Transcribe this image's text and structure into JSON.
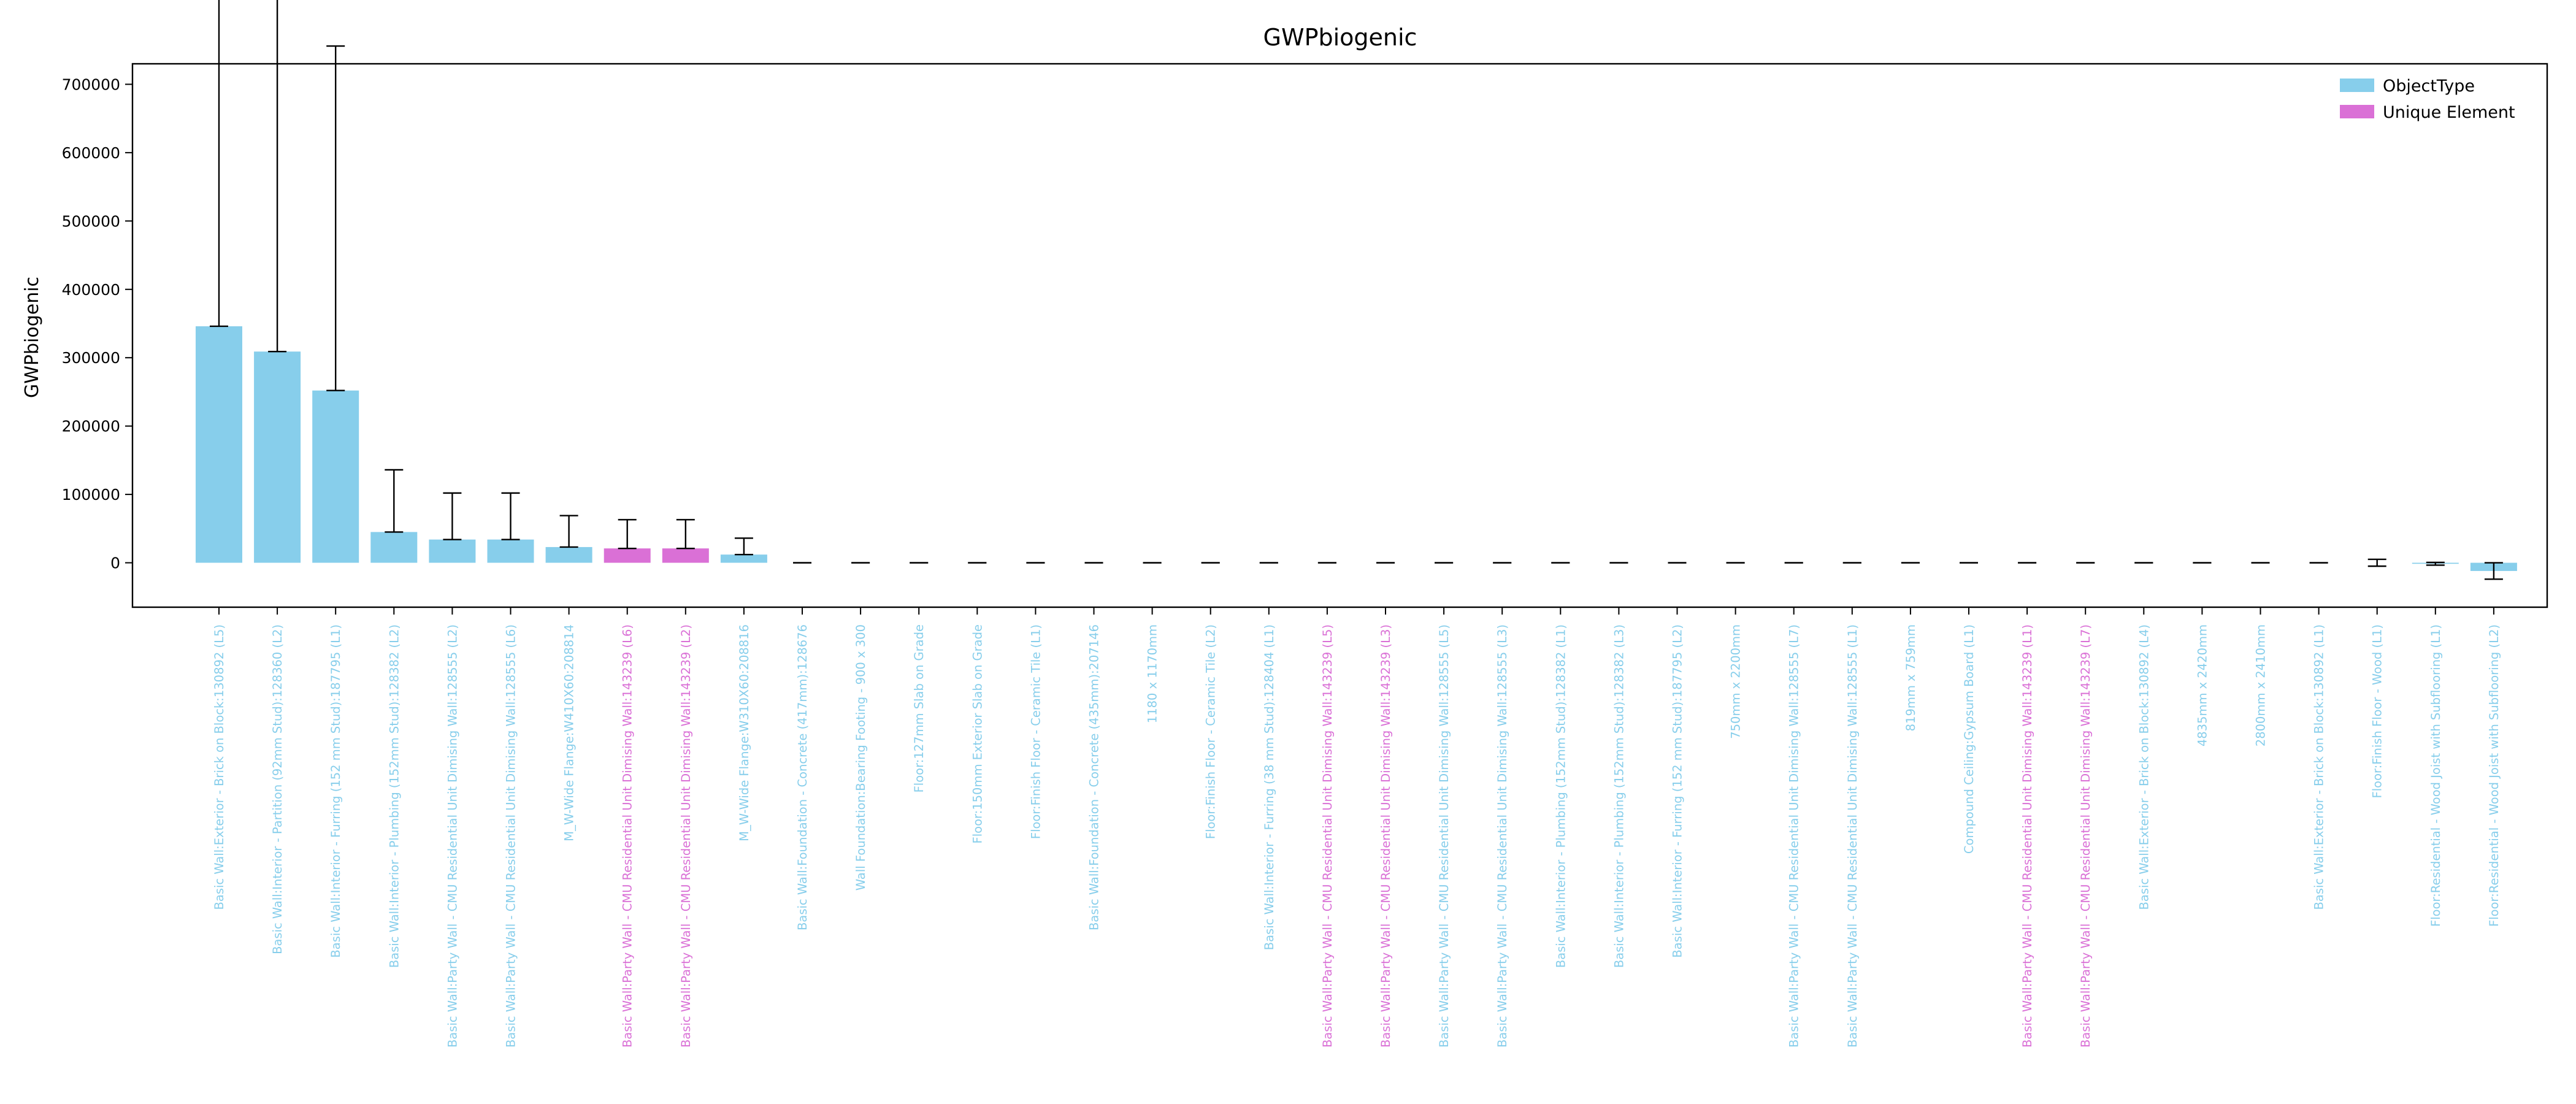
{
  "chart_data": {
    "type": "bar",
    "title": "GWPbiogenic",
    "xlabel": "",
    "ylabel": "GWPbiogenic",
    "ylim": [
      -65000,
      730000
    ],
    "yticks": [
      0,
      100000,
      200000,
      300000,
      400000,
      500000,
      600000,
      700000
    ],
    "grid": false,
    "legend": {
      "placement": "top-right",
      "entries": [
        {
          "label": "ObjectType",
          "color": "#87ceeb"
        },
        {
          "label": "Unique Element",
          "color": "#da70d6"
        }
      ]
    },
    "colors": {
      "ObjectType": "#87ceeb",
      "Unique Element": "#da70d6"
    },
    "categories": [
      {
        "label": "Basic Wall:Exterior - Brick on Block:130892 (L5)",
        "value": 346000,
        "err_low": 0,
        "err_high": 693000,
        "kind": "ObjectType"
      },
      {
        "label": "Basic Wall:Interior - Partition (92mm Stud):128360 (L2)",
        "value": 309000,
        "err_low": 0,
        "err_high": 619000,
        "kind": "ObjectType"
      },
      {
        "label": "Basic Wall:Interior - Furring (152 mm Stud):187795 (L1)",
        "value": 252000,
        "err_low": 0,
        "err_high": 504000,
        "kind": "ObjectType"
      },
      {
        "label": "Basic Wall:Interior - Plumbing (152mm Stud):128382 (L2)",
        "value": 45000,
        "err_low": 0,
        "err_high": 91000,
        "kind": "ObjectType"
      },
      {
        "label": "Basic Wall:Party Wall - CMU Residential Unit Dimising Wall:128555 (L2)",
        "value": 34000,
        "err_low": 0,
        "err_high": 68000,
        "kind": "ObjectType"
      },
      {
        "label": "Basic Wall:Party Wall - CMU Residential Unit Dimising Wall:128555 (L6)",
        "value": 34000,
        "err_low": 0,
        "err_high": 68000,
        "kind": "ObjectType"
      },
      {
        "label": "M_W-Wide Flange:W410X60:208814",
        "value": 23000,
        "err_low": 0,
        "err_high": 46000,
        "kind": "ObjectType"
      },
      {
        "label": "Basic Wall:Party Wall - CMU Residential Unit Dimising Wall:143239 (L6)",
        "value": 21000,
        "err_low": 0,
        "err_high": 42000,
        "kind": "Unique Element"
      },
      {
        "label": "Basic Wall:Party Wall - CMU Residential Unit Dimising Wall:143239 (L2)",
        "value": 21000,
        "err_low": 0,
        "err_high": 42000,
        "kind": "Unique Element"
      },
      {
        "label": "M_W-Wide Flange:W310X60:208816",
        "value": 12000,
        "err_low": 0,
        "err_high": 24000,
        "kind": "ObjectType"
      },
      {
        "label": "Basic Wall:Foundation - Concrete (417mm):128676",
        "value": 0,
        "err_low": 0,
        "err_high": 0,
        "kind": "ObjectType"
      },
      {
        "label": "Wall Foundation:Bearing Footing - 900 x 300",
        "value": 0,
        "err_low": 0,
        "err_high": 0,
        "kind": "ObjectType"
      },
      {
        "label": "Floor:127mm Slab on Grade",
        "value": 0,
        "err_low": 0,
        "err_high": 0,
        "kind": "ObjectType"
      },
      {
        "label": "Floor:150mm Exterior Slab on Grade",
        "value": 0,
        "err_low": 0,
        "err_high": 0,
        "kind": "ObjectType"
      },
      {
        "label": "Floor:Finish Floor - Ceramic Tile (L1)",
        "value": 0,
        "err_low": 0,
        "err_high": 0,
        "kind": "ObjectType"
      },
      {
        "label": "Basic Wall:Foundation - Concrete (435mm):207146",
        "value": 0,
        "err_low": 0,
        "err_high": 0,
        "kind": "ObjectType"
      },
      {
        "label": "1180 x 1170mm",
        "value": 0,
        "err_low": 0,
        "err_high": 0,
        "kind": "ObjectType"
      },
      {
        "label": "Floor:Finish Floor - Ceramic Tile (L2)",
        "value": 0,
        "err_low": 0,
        "err_high": 0,
        "kind": "ObjectType"
      },
      {
        "label": "Basic Wall:Interior - Furring (38 mm Stud):128404 (L1)",
        "value": 0,
        "err_low": 0,
        "err_high": 0,
        "kind": "ObjectType"
      },
      {
        "label": "Basic Wall:Party Wall - CMU Residential Unit Dimising Wall:143239 (L5)",
        "value": 0,
        "err_low": 0,
        "err_high": 0,
        "kind": "Unique Element"
      },
      {
        "label": "Basic Wall:Party Wall - CMU Residential Unit Dimising Wall:143239 (L3)",
        "value": 0,
        "err_low": 0,
        "err_high": 0,
        "kind": "Unique Element"
      },
      {
        "label": "Basic Wall:Party Wall - CMU Residential Unit Dimising Wall:128555 (L5)",
        "value": 0,
        "err_low": 0,
        "err_high": 0,
        "kind": "ObjectType"
      },
      {
        "label": "Basic Wall:Party Wall - CMU Residential Unit Dimising Wall:128555 (L3)",
        "value": 0,
        "err_low": 0,
        "err_high": 0,
        "kind": "ObjectType"
      },
      {
        "label": "Basic Wall:Interior - Plumbing (152mm Stud):128382 (L1)",
        "value": 0,
        "err_low": 0,
        "err_high": 0,
        "kind": "ObjectType"
      },
      {
        "label": "Basic Wall:Interior - Plumbing (152mm Stud):128382 (L3)",
        "value": 0,
        "err_low": 0,
        "err_high": 0,
        "kind": "ObjectType"
      },
      {
        "label": "Basic Wall:Interior - Furring (152 mm Stud):187795 (L2)",
        "value": 0,
        "err_low": 0,
        "err_high": 0,
        "kind": "ObjectType"
      },
      {
        "label": "750mm x 2200mm",
        "value": 0,
        "err_low": 0,
        "err_high": 0,
        "kind": "ObjectType"
      },
      {
        "label": "Basic Wall:Party Wall - CMU Residential Unit Dimising Wall:128555 (L7)",
        "value": 0,
        "err_low": 0,
        "err_high": 0,
        "kind": "ObjectType"
      },
      {
        "label": "Basic Wall:Party Wall - CMU Residential Unit Dimising Wall:128555 (L1)",
        "value": 0,
        "err_low": 0,
        "err_high": 0,
        "kind": "ObjectType"
      },
      {
        "label": "819mm x 759mm",
        "value": 0,
        "err_low": 0,
        "err_high": 0,
        "kind": "ObjectType"
      },
      {
        "label": "Compound Ceiling:Gypsum Board (L1)",
        "value": 0,
        "err_low": 0,
        "err_high": 0,
        "kind": "ObjectType"
      },
      {
        "label": "Basic Wall:Party Wall - CMU Residential Unit Dimising Wall:143239 (L1)",
        "value": 0,
        "err_low": 0,
        "err_high": 0,
        "kind": "Unique Element"
      },
      {
        "label": "Basic Wall:Party Wall - CMU Residential Unit Dimising Wall:143239 (L7)",
        "value": 0,
        "err_low": 0,
        "err_high": 0,
        "kind": "Unique Element"
      },
      {
        "label": "Basic Wall:Exterior - Brick on Block:130892 (L4)",
        "value": 0,
        "err_low": 0,
        "err_high": 0,
        "kind": "ObjectType"
      },
      {
        "label": "4835mm x 2420mm",
        "value": 0,
        "err_low": 0,
        "err_high": 0,
        "kind": "ObjectType"
      },
      {
        "label": "2800mm x 2410mm",
        "value": 0,
        "err_low": 0,
        "err_high": 0,
        "kind": "ObjectType"
      },
      {
        "label": "Basic Wall:Exterior - Brick on Block:130892 (L1)",
        "value": 0,
        "err_low": 0,
        "err_high": 0,
        "kind": "ObjectType"
      },
      {
        "label": "Floor:Finish Floor - Wood (L1)",
        "value": 0,
        "err_low": 5000,
        "err_high": 5000,
        "kind": "ObjectType"
      },
      {
        "label": "Floor:Residential - Wood Joist with Subflooring (L1)",
        "value": -1500,
        "err_low": 2000,
        "err_high": 2000,
        "kind": "ObjectType"
      },
      {
        "label": "Floor:Residential - Wood Joist with Subflooring (L2)",
        "value": -12000,
        "err_low": 12000,
        "err_high": 12000,
        "kind": "ObjectType"
      }
    ]
  }
}
